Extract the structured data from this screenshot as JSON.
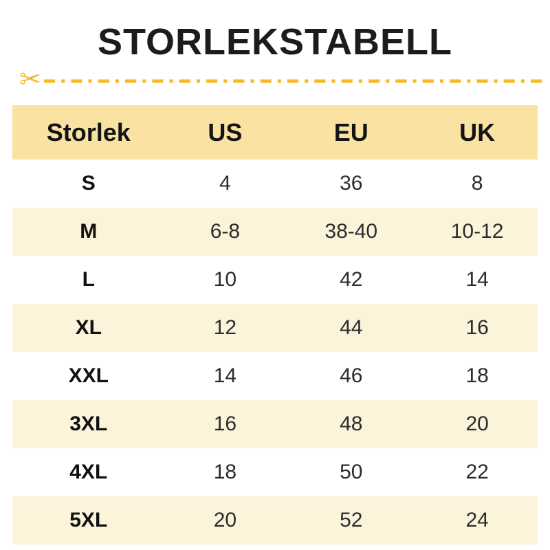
{
  "page": {
    "title": "STORLEKSTABELL"
  },
  "divider": {
    "scissors_icon": "scissors-cut-line",
    "scissors_glyph": "✂"
  },
  "colors": {
    "accent_gold": "#f6ba27",
    "header_bg": "#fae3a2",
    "stripe_bg": "#fbf3da",
    "title_text": "#1c1c1c",
    "body_text": "#2b2b2b"
  },
  "chart_data": {
    "type": "table",
    "title": "STORLEKSTABELL",
    "columns": [
      "Storlek",
      "US",
      "EU",
      "UK"
    ],
    "rows": [
      [
        "S",
        "4",
        "36",
        "8"
      ],
      [
        "M",
        "6-8",
        "38-40",
        "10-12"
      ],
      [
        "L",
        "10",
        "42",
        "14"
      ],
      [
        "XL",
        "12",
        "44",
        "16"
      ],
      [
        "XXL",
        "14",
        "46",
        "18"
      ],
      [
        "3XL",
        "16",
        "48",
        "20"
      ],
      [
        "4XL",
        "18",
        "50",
        "22"
      ],
      [
        "5XL",
        "20",
        "52",
        "24"
      ]
    ]
  },
  "table": {
    "columns": [
      "Storlek",
      "US",
      "EU",
      "UK"
    ],
    "rows": [
      {
        "size": "S",
        "us": "4",
        "eu": "36",
        "uk": "8"
      },
      {
        "size": "M",
        "us": "6-8",
        "eu": "38-40",
        "uk": "10-12"
      },
      {
        "size": "L",
        "us": "10",
        "eu": "42",
        "uk": "14"
      },
      {
        "size": "XL",
        "us": "12",
        "eu": "44",
        "uk": "16"
      },
      {
        "size": "XXL",
        "us": "14",
        "eu": "46",
        "uk": "18"
      },
      {
        "size": "3XL",
        "us": "16",
        "eu": "48",
        "uk": "20"
      },
      {
        "size": "4XL",
        "us": "18",
        "eu": "50",
        "uk": "22"
      },
      {
        "size": "5XL",
        "us": "20",
        "eu": "52",
        "uk": "24"
      }
    ]
  }
}
